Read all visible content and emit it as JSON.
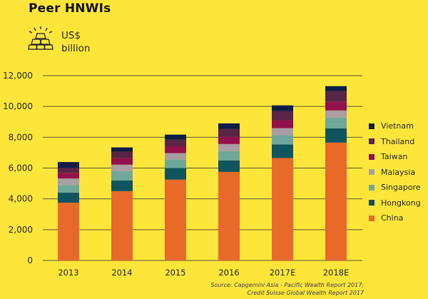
{
  "header": {
    "title": "Peer HNWIs",
    "unit_icon": "gold-bars-icon",
    "unit_line1": "US$",
    "unit_line2": "billion"
  },
  "source": {
    "line1": "Source: Capgemini Asia - Pacific Wealth Report 2017;",
    "line2": "Credit Suisse Global Wealth Report 2017"
  },
  "chart_data": {
    "type": "bar",
    "stacked": true,
    "title": "Peer HNWIs",
    "ylabel": "US$ billion",
    "xlabel": "",
    "ylim": [
      0,
      12000
    ],
    "yticks": [
      0,
      2000,
      4000,
      6000,
      8000,
      10000,
      12000
    ],
    "ytick_labels": [
      "0",
      "2,000",
      "4,000",
      "6,000",
      "8,000",
      "10,000",
      "12,000"
    ],
    "grid": "horizontal",
    "legend_position": "right",
    "categories": [
      "2013",
      "2014",
      "2015",
      "2016",
      "2017E",
      "2018E"
    ],
    "series": [
      {
        "name": "China",
        "color": "#e8692a",
        "values": [
          3750,
          4500,
          5250,
          5750,
          6650,
          7650
        ]
      },
      {
        "name": "Hongkong",
        "color": "#0f5560",
        "values": [
          650,
          700,
          750,
          750,
          880,
          930
        ]
      },
      {
        "name": "Singapore",
        "color": "#6fa79b",
        "values": [
          500,
          600,
          550,
          600,
          600,
          700
        ]
      },
      {
        "name": "Malaysia",
        "color": "#a89ea3",
        "values": [
          420,
          420,
          420,
          460,
          460,
          460
        ]
      },
      {
        "name": "Taiwan",
        "color": "#93104e",
        "values": [
          370,
          420,
          420,
          460,
          510,
          560
        ]
      },
      {
        "name": "Thailand",
        "color": "#5a2449",
        "values": [
          330,
          420,
          460,
          510,
          600,
          700
        ]
      },
      {
        "name": "Vietnam",
        "color": "#0d1d45",
        "values": [
          370,
          280,
          320,
          370,
          370,
          320
        ]
      }
    ],
    "legend_order": [
      "Vietnam",
      "Thailand",
      "Taiwan",
      "Malaysia",
      "Singapore",
      "Hongkong",
      "China"
    ]
  }
}
